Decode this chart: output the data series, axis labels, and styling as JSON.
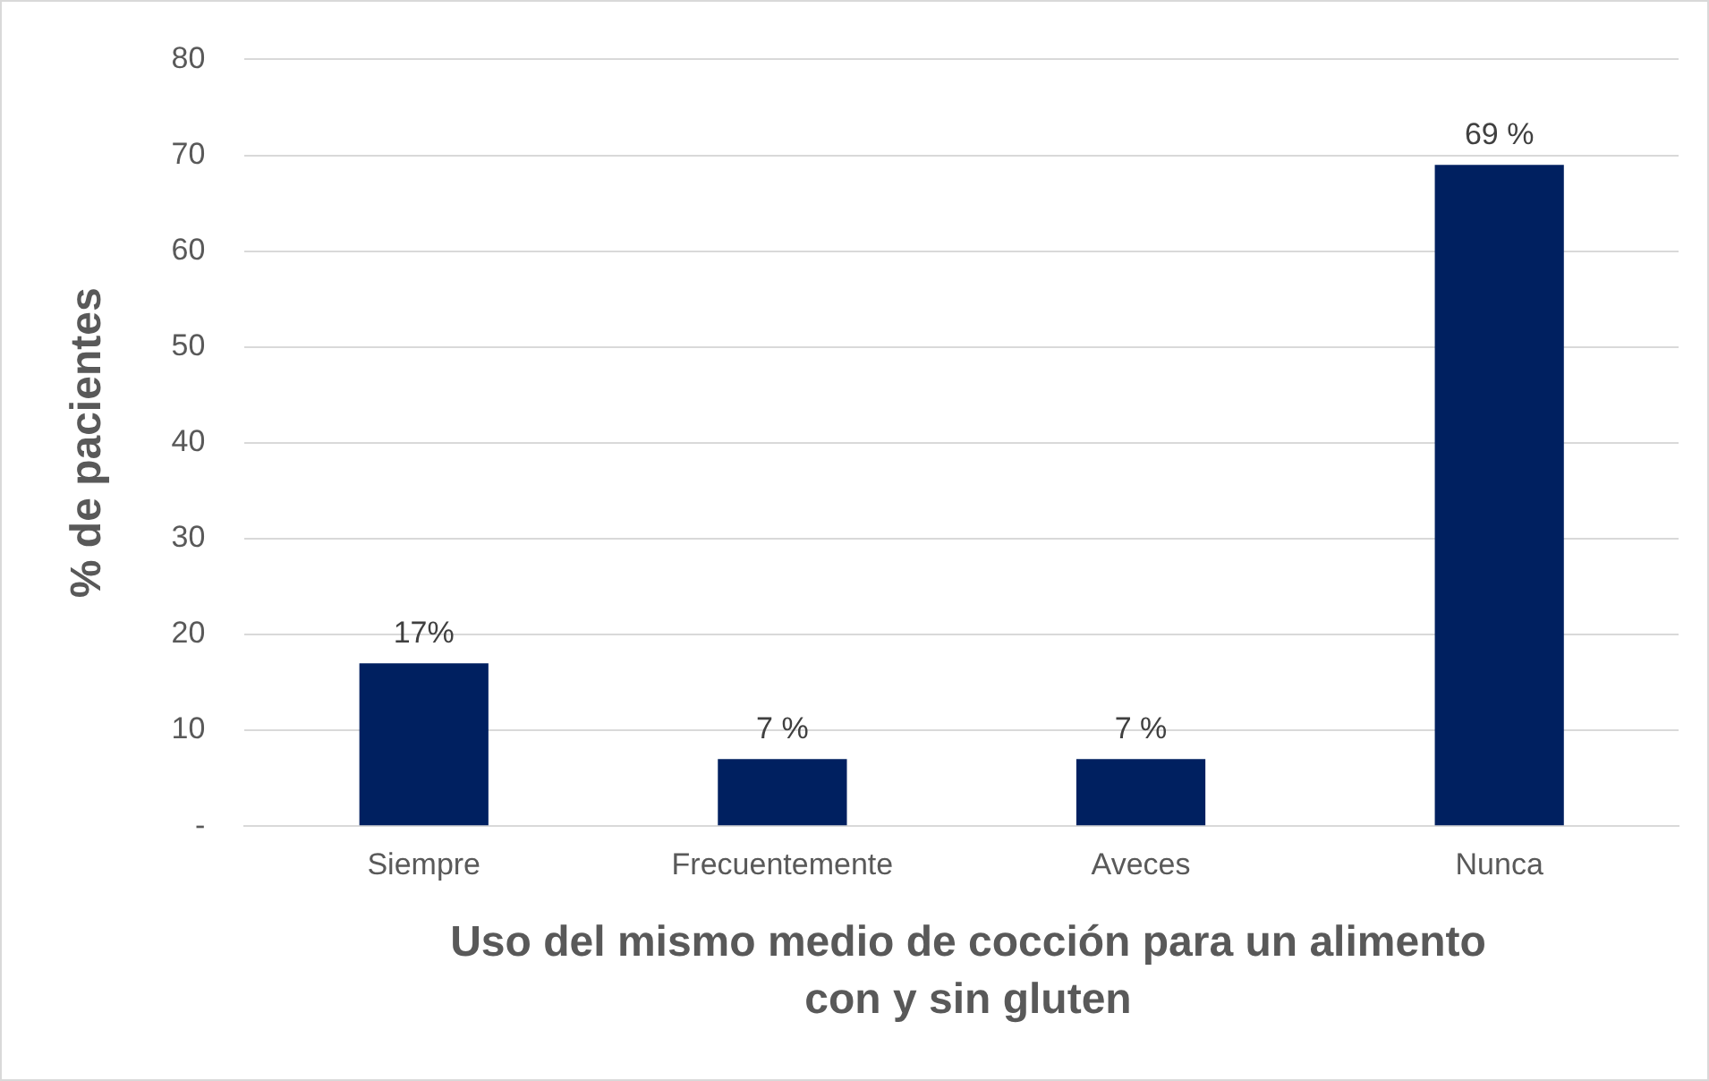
{
  "chart_data": {
    "type": "bar",
    "xlabel": "Uso del mismo medio de cocción para un alimento con y sin gluten",
    "ylabel": "% de pacientes",
    "categories": [
      "Siempre",
      "Frecuentemente",
      "Aveces",
      "Nunca"
    ],
    "values": [
      17,
      7,
      7,
      69
    ],
    "color": "#002060",
    "value_labels": [
      "17%",
      "7 %",
      "7 %",
      "69 %"
    ],
    "ylim": [
      0,
      80
    ],
    "yticks": [
      {
        "value": 0,
        "label": "-"
      },
      10,
      20,
      30,
      40,
      50,
      60,
      70,
      80
    ],
    "grid": "y"
  }
}
